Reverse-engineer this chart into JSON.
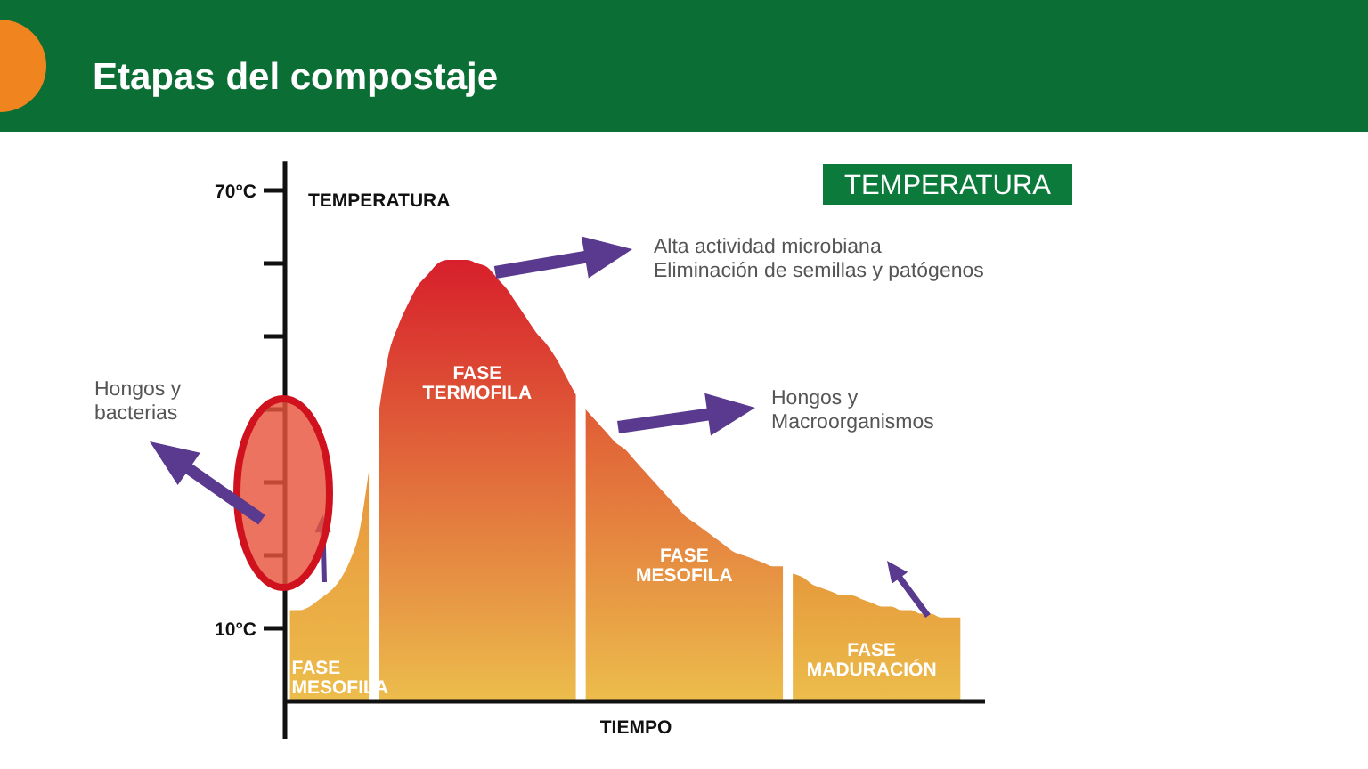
{
  "chart_data": {
    "type": "area",
    "title": "Etapas del compostaje",
    "subtitle": "TEMPERATURA",
    "xlabel": "TIEMPO",
    "ylabel": "TEMPERATURA",
    "categories": [
      null,
      null,
      null,
      null,
      null,
      null,
      null,
      null,
      null,
      null,
      null,
      null,
      null,
      null,
      null,
      null,
      null,
      null,
      null,
      null,
      null,
      null,
      null,
      null,
      null,
      null,
      null,
      null,
      null,
      null,
      null,
      null,
      null,
      null,
      null,
      null,
      null,
      null,
      null,
      null,
      null,
      null,
      null,
      null,
      null,
      null,
      null,
      null,
      null,
      null,
      null,
      null,
      null,
      null,
      null,
      null,
      null,
      null,
      null,
      null,
      null,
      null,
      null,
      null,
      null,
      null,
      null,
      null,
      null,
      null,
      null
    ],
    "ylim": [
      0,
      74
    ],
    "yticks": [
      {
        "value": 70,
        "label": "70°C"
      },
      {
        "value": 60,
        "label": null
      },
      {
        "value": 50,
        "label": null
      },
      {
        "value": 40,
        "label": null
      },
      {
        "value": 30,
        "label": null
      },
      {
        "value": 20,
        "label": null
      },
      {
        "value": 10,
        "label": "10°C"
      }
    ],
    "tick_labels": "y",
    "series": [
      {
        "name": "FASE MESOFILA",
        "color": "#e8953b",
        "values": [
          12.5,
          12.5,
          13,
          14,
          15,
          16.5,
          19,
          23,
          31.5,
          null,
          null,
          null,
          null,
          null,
          null,
          null,
          null,
          null,
          null,
          null,
          null,
          null,
          null,
          null,
          null,
          null,
          null,
          null,
          null,
          null,
          null,
          null,
          null,
          null,
          null,
          null,
          null,
          null,
          null,
          null,
          null,
          null,
          null,
          null,
          null,
          null,
          null,
          null,
          null,
          null,
          null,
          null,
          null,
          null,
          null,
          null,
          null,
          null,
          null,
          null,
          null,
          null,
          null,
          null,
          null,
          null,
          null,
          null,
          null,
          null,
          null
        ]
      },
      {
        "name": "FASE TERMOFILA",
        "color": "#d71f2b",
        "values": [
          null,
          null,
          null,
          null,
          null,
          null,
          null,
          null,
          null,
          39.5,
          47.5,
          51.5,
          54.5,
          57,
          58.5,
          60,
          60.5,
          60.5,
          60.5,
          60,
          59.5,
          58,
          56.5,
          54.5,
          52.5,
          50.5,
          49,
          47,
          44.5,
          42,
          null,
          null,
          null,
          null,
          null,
          null,
          null,
          null,
          null,
          null,
          null,
          null,
          null,
          null,
          null,
          null,
          null,
          null,
          null,
          null,
          null,
          null,
          null,
          null,
          null,
          null,
          null,
          null,
          null,
          null,
          null,
          null,
          null,
          null,
          null,
          null,
          null,
          null,
          null,
          null,
          null
        ]
      },
      {
        "name": "FASE MESOFILA",
        "color": "#e05c36",
        "values": [
          null,
          null,
          null,
          null,
          null,
          null,
          null,
          null,
          null,
          null,
          null,
          null,
          null,
          null,
          null,
          null,
          null,
          null,
          null,
          null,
          null,
          null,
          null,
          null,
          null,
          null,
          null,
          null,
          null,
          null,
          40,
          38.5,
          37,
          35.5,
          34.5,
          33,
          31.5,
          30,
          28.5,
          27,
          25.5,
          24.5,
          23.5,
          22.5,
          21.5,
          20.5,
          20,
          19.5,
          19,
          18.5,
          18.5,
          null,
          null,
          null,
          null,
          null,
          null,
          null,
          null,
          null,
          null,
          null,
          null,
          null,
          null,
          null,
          null,
          null,
          null,
          null,
          null
        ]
      },
      {
        "name": "FASE MADURACIÓN",
        "color": "#e69a3b",
        "values": [
          null,
          null,
          null,
          null,
          null,
          null,
          null,
          null,
          null,
          null,
          null,
          null,
          null,
          null,
          null,
          null,
          null,
          null,
          null,
          null,
          null,
          null,
          null,
          null,
          null,
          null,
          null,
          null,
          null,
          null,
          null,
          null,
          null,
          null,
          null,
          null,
          null,
          null,
          null,
          null,
          null,
          null,
          null,
          null,
          null,
          null,
          null,
          null,
          null,
          null,
          null,
          17.5,
          17,
          16,
          15.5,
          15,
          14.5,
          14.5,
          14,
          13.5,
          13,
          13,
          12.5,
          12.5,
          12,
          12,
          11.5,
          11.5,
          11.5,
          null,
          null
        ]
      }
    ],
    "annotations": [
      "Alta actividad microbiana\nEliminación de semillas y patógenos",
      "Hongos y\nMacroorganismos",
      "Hongos y\nbacterias"
    ]
  }
}
